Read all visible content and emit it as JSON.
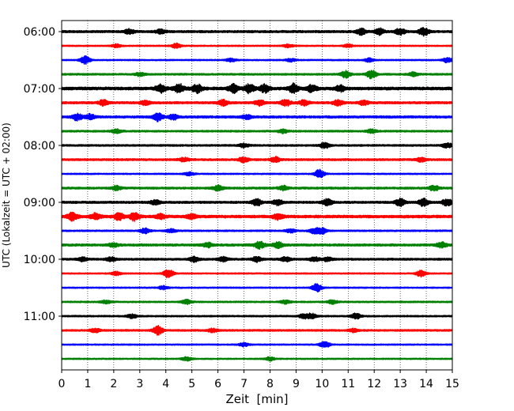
{
  "chart_data": {
    "type": "line",
    "title": "",
    "xlabel": "Zeit  [min]",
    "ylabel": "UTC (Lokalzeit = UTC + 02:00)",
    "xlim": [
      0,
      15
    ],
    "x_ticks": [
      "0",
      "1",
      "2",
      "3",
      "4",
      "5",
      "6",
      "7",
      "8",
      "9",
      "10",
      "11",
      "12",
      "13",
      "14",
      "15"
    ],
    "y_tick_labels": [
      "06:00",
      "07:00",
      "08:00",
      "09:00",
      "10:00",
      "11:00"
    ],
    "y_tick_trace_index": [
      0,
      4,
      8,
      12,
      16,
      20
    ],
    "grid_x": true,
    "trace_colors": [
      "#000000",
      "#ff0000",
      "#0000ff",
      "#008000"
    ],
    "traces": [
      {
        "start": "06:00",
        "color": "#000000",
        "amplitude": 1.0,
        "events": [
          {
            "t": 2.6,
            "a": 1.8
          },
          {
            "t": 3.8,
            "a": 1.4
          },
          {
            "t": 11.5,
            "a": 2.2
          },
          {
            "t": 12.2,
            "a": 2.4
          },
          {
            "t": 13.0,
            "a": 2.6
          },
          {
            "t": 13.9,
            "a": 3.0
          }
        ]
      },
      {
        "start": "06:15",
        "color": "#ff0000",
        "amplitude": 0.6,
        "events": [
          {
            "t": 2.1,
            "a": 1.2
          },
          {
            "t": 4.4,
            "a": 1.8
          },
          {
            "t": 8.7,
            "a": 1.2
          },
          {
            "t": 11.0,
            "a": 1.2
          }
        ]
      },
      {
        "start": "06:30",
        "color": "#0000ff",
        "amplitude": 0.6,
        "events": [
          {
            "t": 0.9,
            "a": 3.0
          },
          {
            "t": 6.5,
            "a": 1.2
          },
          {
            "t": 8.8,
            "a": 1.2
          },
          {
            "t": 11.8,
            "a": 1.4
          },
          {
            "t": 14.8,
            "a": 1.8
          }
        ]
      },
      {
        "start": "06:45",
        "color": "#008000",
        "amplitude": 0.8,
        "events": [
          {
            "t": 3.0,
            "a": 1.2
          },
          {
            "t": 10.9,
            "a": 2.6
          },
          {
            "t": 11.9,
            "a": 3.0
          },
          {
            "t": 13.5,
            "a": 1.4
          }
        ]
      },
      {
        "start": "07:00",
        "color": "#000000",
        "amplitude": 1.3,
        "events": [
          {
            "t": 3.8,
            "a": 3.0
          },
          {
            "t": 4.5,
            "a": 3.4
          },
          {
            "t": 5.2,
            "a": 3.0
          },
          {
            "t": 6.6,
            "a": 3.0
          },
          {
            "t": 7.2,
            "a": 3.2
          },
          {
            "t": 7.8,
            "a": 2.8
          },
          {
            "t": 8.9,
            "a": 3.2
          },
          {
            "t": 9.6,
            "a": 2.4
          },
          {
            "t": 10.7,
            "a": 2.0
          }
        ]
      },
      {
        "start": "07:15",
        "color": "#ff0000",
        "amplitude": 1.0,
        "events": [
          {
            "t": 1.6,
            "a": 2.0
          },
          {
            "t": 3.2,
            "a": 1.6
          },
          {
            "t": 6.2,
            "a": 2.0
          },
          {
            "t": 7.6,
            "a": 2.0
          },
          {
            "t": 8.6,
            "a": 2.4
          },
          {
            "t": 9.3,
            "a": 2.0
          },
          {
            "t": 10.6,
            "a": 2.0
          },
          {
            "t": 11.6,
            "a": 1.6
          }
        ]
      },
      {
        "start": "07:30",
        "color": "#0000ff",
        "amplitude": 1.0,
        "events": [
          {
            "t": 0.6,
            "a": 2.4
          },
          {
            "t": 1.1,
            "a": 2.0
          },
          {
            "t": 3.7,
            "a": 3.0
          },
          {
            "t": 4.3,
            "a": 2.0
          },
          {
            "t": 7.1,
            "a": 1.4
          }
        ]
      },
      {
        "start": "07:45",
        "color": "#008000",
        "amplitude": 0.8,
        "events": [
          {
            "t": 2.1,
            "a": 1.4
          },
          {
            "t": 8.5,
            "a": 1.4
          },
          {
            "t": 11.9,
            "a": 1.4
          }
        ]
      },
      {
        "start": "08:00",
        "color": "#000000",
        "amplitude": 0.8,
        "events": [
          {
            "t": 7.0,
            "a": 1.4
          },
          {
            "t": 10.1,
            "a": 2.2
          },
          {
            "t": 14.8,
            "a": 1.8
          }
        ]
      },
      {
        "start": "08:15",
        "color": "#ff0000",
        "amplitude": 0.9,
        "events": [
          {
            "t": 4.7,
            "a": 1.4
          },
          {
            "t": 7.0,
            "a": 2.0
          },
          {
            "t": 8.2,
            "a": 1.8
          },
          {
            "t": 13.8,
            "a": 1.4
          }
        ]
      },
      {
        "start": "08:30",
        "color": "#0000ff",
        "amplitude": 0.6,
        "events": [
          {
            "t": 4.9,
            "a": 1.4
          },
          {
            "t": 9.9,
            "a": 3.4
          }
        ]
      },
      {
        "start": "08:45",
        "color": "#008000",
        "amplitude": 0.9,
        "events": [
          {
            "t": 2.1,
            "a": 1.6
          },
          {
            "t": 6.0,
            "a": 2.0
          },
          {
            "t": 8.5,
            "a": 1.6
          },
          {
            "t": 14.3,
            "a": 1.8
          }
        ]
      },
      {
        "start": "09:00",
        "color": "#000000",
        "amplitude": 1.0,
        "events": [
          {
            "t": 3.6,
            "a": 1.6
          },
          {
            "t": 7.5,
            "a": 2.4
          },
          {
            "t": 8.3,
            "a": 2.0
          },
          {
            "t": 10.2,
            "a": 2.4
          },
          {
            "t": 13.0,
            "a": 2.6
          },
          {
            "t": 13.9,
            "a": 2.8
          },
          {
            "t": 14.8,
            "a": 2.6
          }
        ]
      },
      {
        "start": "09:15",
        "color": "#ff0000",
        "amplitude": 1.2,
        "events": [
          {
            "t": 0.4,
            "a": 3.0
          },
          {
            "t": 1.3,
            "a": 2.2
          },
          {
            "t": 2.2,
            "a": 2.6
          },
          {
            "t": 2.8,
            "a": 3.0
          },
          {
            "t": 3.8,
            "a": 1.8
          },
          {
            "t": 5.0,
            "a": 1.6
          },
          {
            "t": 8.3,
            "a": 2.0
          }
        ]
      },
      {
        "start": "09:30",
        "color": "#0000ff",
        "amplitude": 0.7,
        "events": [
          {
            "t": 3.2,
            "a": 2.0
          },
          {
            "t": 4.2,
            "a": 1.4
          },
          {
            "t": 8.8,
            "a": 1.4
          },
          {
            "t": 9.7,
            "a": 2.0
          },
          {
            "t": 10.0,
            "a": 2.2
          }
        ]
      },
      {
        "start": "09:45",
        "color": "#008000",
        "amplitude": 1.0,
        "events": [
          {
            "t": 2.0,
            "a": 1.4
          },
          {
            "t": 5.6,
            "a": 1.6
          },
          {
            "t": 7.6,
            "a": 2.6
          },
          {
            "t": 8.3,
            "a": 2.2
          },
          {
            "t": 14.6,
            "a": 1.8
          }
        ]
      },
      {
        "start": "10:00",
        "color": "#000000",
        "amplitude": 0.9,
        "events": [
          {
            "t": 0.8,
            "a": 1.4
          },
          {
            "t": 1.9,
            "a": 1.6
          },
          {
            "t": 5.1,
            "a": 1.8
          },
          {
            "t": 6.2,
            "a": 1.6
          },
          {
            "t": 7.5,
            "a": 2.0
          },
          {
            "t": 8.6,
            "a": 1.6
          },
          {
            "t": 9.7,
            "a": 1.6
          },
          {
            "t": 10.2,
            "a": 1.4
          }
        ]
      },
      {
        "start": "10:15",
        "color": "#ff0000",
        "amplitude": 0.6,
        "events": [
          {
            "t": 2.1,
            "a": 1.4
          },
          {
            "t": 4.1,
            "a": 3.4
          },
          {
            "t": 13.8,
            "a": 2.4
          }
        ]
      },
      {
        "start": "10:30",
        "color": "#0000ff",
        "amplitude": 0.6,
        "events": [
          {
            "t": 3.9,
            "a": 1.4
          },
          {
            "t": 9.8,
            "a": 3.0
          }
        ]
      },
      {
        "start": "10:45",
        "color": "#008000",
        "amplitude": 0.7,
        "events": [
          {
            "t": 1.7,
            "a": 1.4
          },
          {
            "t": 4.8,
            "a": 1.6
          },
          {
            "t": 8.6,
            "a": 1.4
          },
          {
            "t": 10.4,
            "a": 1.4
          }
        ]
      },
      {
        "start": "11:00",
        "color": "#000000",
        "amplitude": 0.7,
        "events": [
          {
            "t": 2.7,
            "a": 1.4
          },
          {
            "t": 9.3,
            "a": 1.6
          },
          {
            "t": 9.6,
            "a": 1.8
          },
          {
            "t": 11.3,
            "a": 2.0
          }
        ]
      },
      {
        "start": "11:15",
        "color": "#ff0000",
        "amplitude": 0.8,
        "events": [
          {
            "t": 1.3,
            "a": 1.6
          },
          {
            "t": 3.7,
            "a": 3.4
          },
          {
            "t": 5.8,
            "a": 1.4
          },
          {
            "t": 11.2,
            "a": 1.2
          }
        ]
      },
      {
        "start": "11:30",
        "color": "#0000ff",
        "amplitude": 0.6,
        "events": [
          {
            "t": 7.0,
            "a": 1.4
          },
          {
            "t": 10.1,
            "a": 2.6
          }
        ]
      },
      {
        "start": "11:45",
        "color": "#008000",
        "amplitude": 0.6,
        "events": [
          {
            "t": 4.8,
            "a": 1.4
          },
          {
            "t": 8.0,
            "a": 1.4
          }
        ]
      }
    ]
  }
}
